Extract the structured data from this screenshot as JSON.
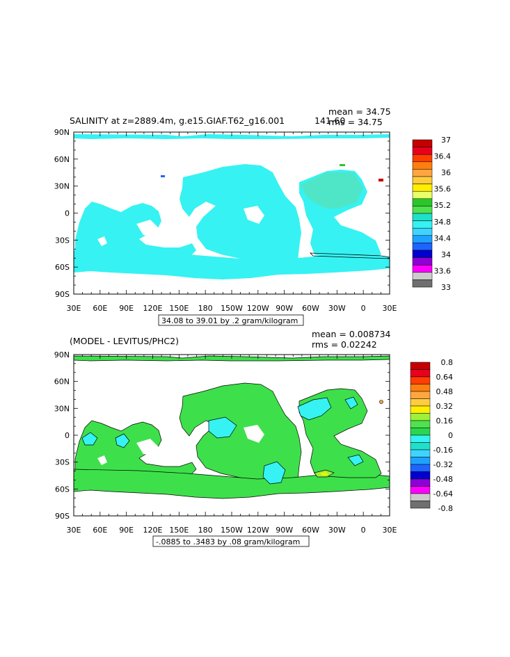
{
  "panel1": {
    "title": "SALINITY at z=2889.4m, g.e15.GIAF.T62_g16.001",
    "years": "141-60",
    "stat_mean": "mean = 34.75",
    "stat_rms": "rms = 34.75",
    "range_note": "34.08 to 39.01 by .2 gram/kilogram",
    "colorbar": {
      "labels": [
        "37",
        "36.4",
        "36",
        "35.6",
        "35.2",
        "34.8",
        "34.4",
        "34",
        "33.6",
        "33"
      ],
      "colors": [
        "#c40000",
        "#e8001e",
        "#ff3e00",
        "#ff7f0e",
        "#ffa640",
        "#ffcc40",
        "#ffee00",
        "#eaff6a",
        "#2ac62a",
        "#4ee24e",
        "#1fe0c9",
        "#36f2f2",
        "#3fd4ff",
        "#1fa2ff",
        "#1e64ff",
        "#0000d0",
        "#8f00d6",
        "#ff00ff",
        "#cccccc",
        "#707070"
      ]
    }
  },
  "panel2": {
    "title": "(MODEL - LEVITUS/PHC2)",
    "stat_mean": "mean = 0.008734",
    "stat_rms": "rms = 0.02242",
    "range_note": "-.0885 to .3483 by .08 gram/kilogram",
    "colorbar": {
      "labels": [
        "0.8",
        "0.64",
        "0.48",
        "0.32",
        "0.16",
        "0",
        "-0.16",
        "-0.32",
        "-0.48",
        "-0.64",
        "-0.8"
      ],
      "colors": [
        "#c40000",
        "#e8001e",
        "#ff3e00",
        "#ff7f0e",
        "#ffa640",
        "#ffcc40",
        "#ffee00",
        "#9cf23a",
        "#4ee24e",
        "#2bd64f",
        "#36f2f2",
        "#1fe0c9",
        "#3fd4ff",
        "#1fa2ff",
        "#1e64ff",
        "#0000d0",
        "#8f00d6",
        "#ff00ff",
        "#cccccc",
        "#707070"
      ]
    }
  },
  "axes": {
    "lon_ticks": [
      "30E",
      "60E",
      "90E",
      "120E",
      "150E",
      "180",
      "150W",
      "120W",
      "90W",
      "60W",
      "30W",
      "0",
      "30E"
    ],
    "lat_ticks": [
      "90N",
      "60N",
      "30N",
      "0",
      "30S",
      "60S",
      "90S"
    ]
  },
  "colors": {
    "panel1_ocean": "#36f2f2",
    "panel2_ocean": "#3de04a",
    "panel2_negative": "#36f2f2",
    "atlantic_shade": "#4fe6c8"
  }
}
